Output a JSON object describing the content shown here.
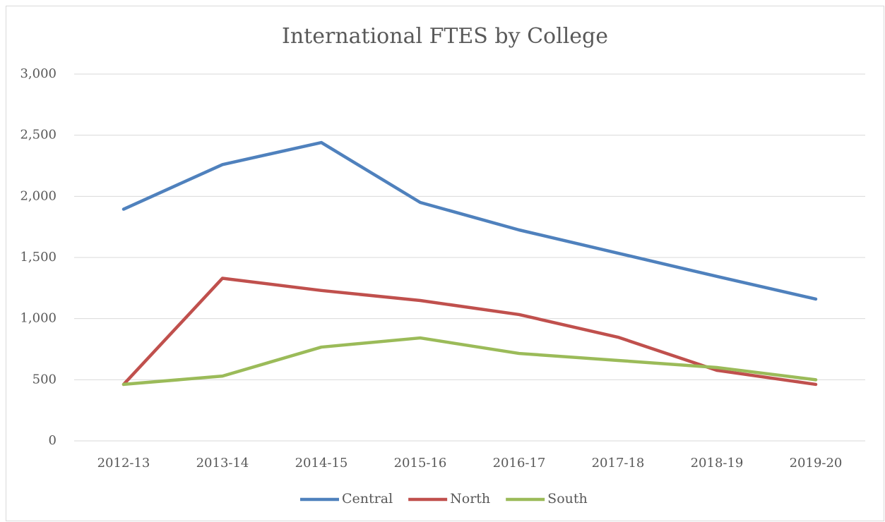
{
  "chart_data": {
    "type": "line",
    "title": "International FTES by College",
    "categories": [
      "2012-13",
      "2013-14",
      "2014-15",
      "2015-16",
      "2016-17",
      "2017-18",
      "2018-19",
      "2019-20"
    ],
    "series": [
      {
        "name": "Central",
        "color": "#4f81bd",
        "values": [
          1895,
          2260,
          2440,
          1950,
          1725,
          1535,
          1345,
          1160
        ]
      },
      {
        "name": "North",
        "color": "#c0504d",
        "values": [
          462,
          1330,
          1230,
          1148,
          1033,
          848,
          577,
          462
        ]
      },
      {
        "name": "South",
        "color": "#9bbb59",
        "values": [
          462,
          530,
          767,
          842,
          715,
          658,
          600,
          500
        ]
      }
    ],
    "ylim": [
      0,
      3000
    ],
    "yticks": [
      0,
      500,
      {
        "value": 1000,
        "label": "1,000"
      },
      {
        "value": 1500,
        "label": "1,500"
      },
      {
        "value": 2000,
        "label": "2,000"
      },
      {
        "value": 2500,
        "label": "2,500"
      },
      {
        "value": 3000,
        "label": "3,000"
      }
    ],
    "grid": true,
    "legend": "bottom"
  }
}
